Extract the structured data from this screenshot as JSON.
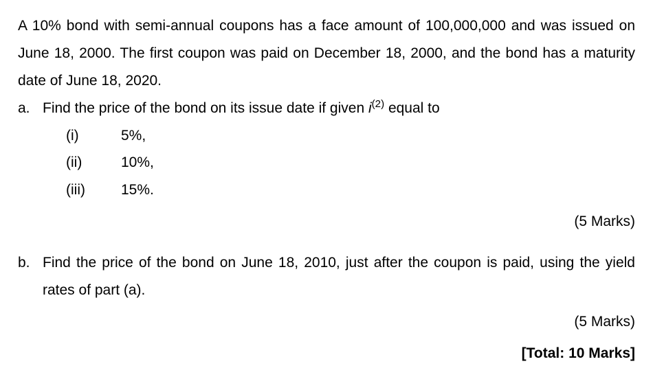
{
  "intro": "A 10% bond with semi-annual coupons has a face amount of 100,000,000 and was issued on June 18, 2000. The first coupon was paid on December 18, 2000, and the bond has a maturity date of June 18, 2020.",
  "a": {
    "letter": "a.",
    "prompt_pre": "Find the price of the bond on its issue date if given ",
    "sup": "(2)",
    "prompt_post": " equal to",
    "items": [
      {
        "label": "(i)",
        "value": "5%,"
      },
      {
        "label": "(ii)",
        "value": "10%,"
      },
      {
        "label": "(iii)",
        "value": "15%."
      }
    ],
    "marks": "(5 Marks)"
  },
  "b": {
    "letter": "b.",
    "prompt": "Find the price of the bond on June 18, 2010, just after the coupon is paid, using the yield rates of part (a).",
    "marks": "(5 Marks)"
  },
  "total": "[Total: 10 Marks]"
}
